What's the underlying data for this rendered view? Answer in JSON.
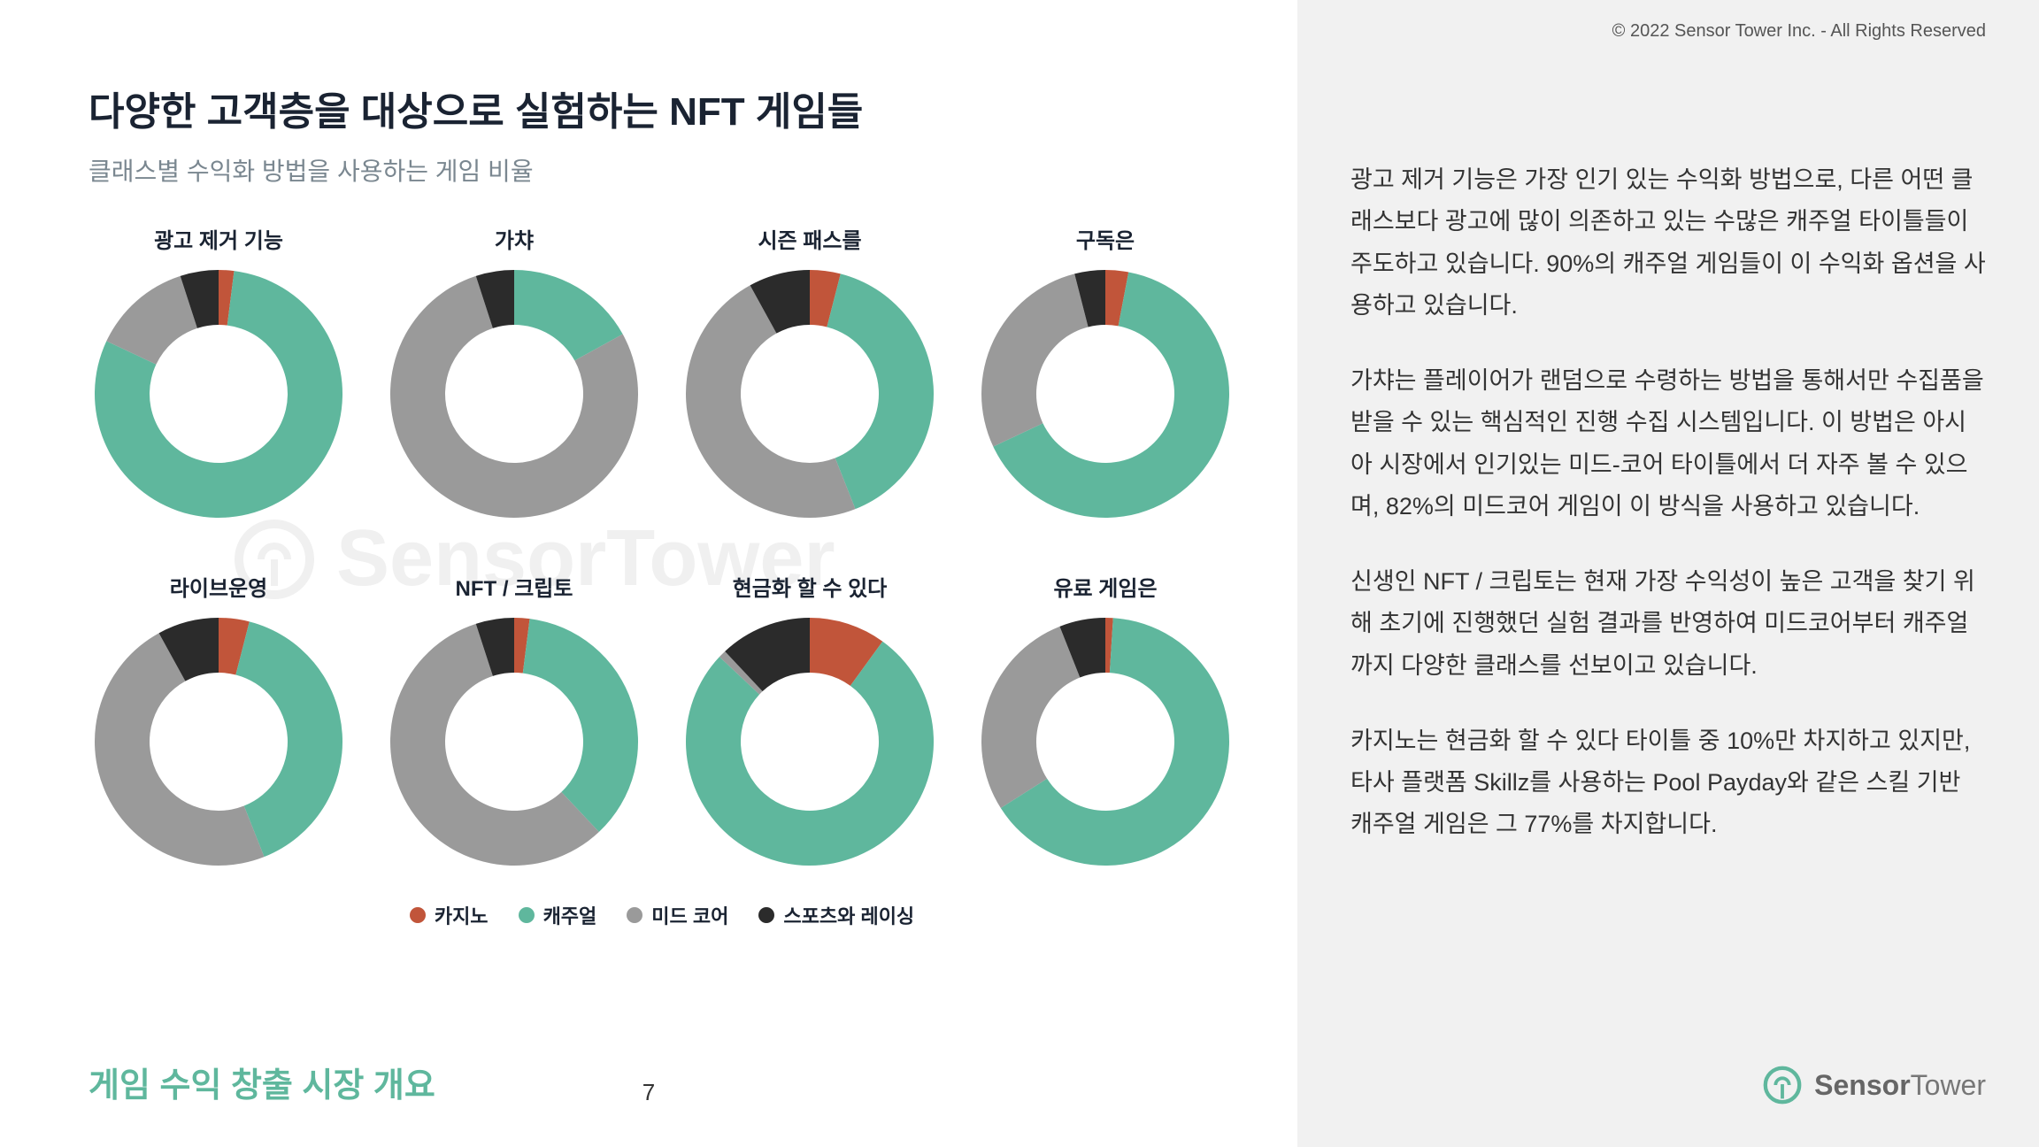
{
  "copyright": "© 2022 Sensor Tower Inc. - All Rights Reserved",
  "title": "다양한 고객층을 대상으로 실험하는 NFT 게임들",
  "subtitle": "클래스별 수익화 방법을 사용하는 게임 비율",
  "footer_title": "게임 수익 창출 시장 개요",
  "page_number": "7",
  "logo_text_bold": "Sensor",
  "logo_text_light": "Tower",
  "colors": {
    "casino": "#c1553a",
    "casual": "#5fb79d",
    "midcore": "#9a9a9a",
    "sports": "#2b2b2b",
    "background": "#ffffff",
    "side_bg": "#f1f1f1",
    "title_color": "#1a2332",
    "subtitle_color": "#7a8790",
    "accent": "#5fb79d"
  },
  "donut": {
    "outer_radius": 140,
    "inner_radius": 78,
    "size": 280
  },
  "legend": [
    {
      "label": "카지노",
      "color": "#c1553a"
    },
    {
      "label": "캐주얼",
      "color": "#5fb79d"
    },
    {
      "label": "미드 코어",
      "color": "#9a9a9a"
    },
    {
      "label": "스포츠와 레이싱",
      "color": "#2b2b2b"
    }
  ],
  "charts": [
    {
      "label": "광고 제거 기능",
      "values": {
        "casino": 2,
        "casual": 80,
        "midcore": 13,
        "sports": 5
      }
    },
    {
      "label": "가챠",
      "values": {
        "casino": 0,
        "casual": 17,
        "midcore": 78,
        "sports": 5
      }
    },
    {
      "label": "시즌 패스를",
      "values": {
        "casino": 4,
        "casual": 40,
        "midcore": 48,
        "sports": 8
      }
    },
    {
      "label": "구독은",
      "values": {
        "casino": 3,
        "casual": 65,
        "midcore": 28,
        "sports": 4
      }
    },
    {
      "label": "라이브운영",
      "values": {
        "casino": 4,
        "casual": 40,
        "midcore": 48,
        "sports": 8
      }
    },
    {
      "label": "NFT / 크립토",
      "values": {
        "casino": 2,
        "casual": 36,
        "midcore": 57,
        "sports": 5
      }
    },
    {
      "label": "현금화 할 수 있다",
      "values": {
        "casino": 10,
        "casual": 77,
        "midcore": 1,
        "sports": 12
      }
    },
    {
      "label": "유료 게임은",
      "values": {
        "casino": 1,
        "casual": 65,
        "midcore": 28,
        "sports": 6
      }
    }
  ],
  "side_paragraphs": [
    "광고 제거 기능은 가장 인기 있는 수익화 방법으로, 다른 어떤 클래스보다 광고에 많이 의존하고 있는 수많은 캐주얼 타이틀들이 주도하고 있습니다. 90%의 캐주얼 게임들이 이 수익화 옵션을 사용하고 있습니다.",
    "가챠는 플레이어가 랜덤으로 수령하는 방법을 통해서만 수집품을 받을 수 있는 핵심적인 진행 수집 시스템입니다. 이 방법은 아시아 시장에서 인기있는 미드-코어 타이틀에서 더 자주 볼 수 있으며, 82%의 미드코어 게임이 이 방식을 사용하고 있습니다.",
    "신생인 NFT / 크립토는 현재 가장 수익성이 높은 고객을 찾기 위해 초기에 진행했던 실험 결과를 반영하여 미드코어부터 캐주얼까지 다양한 클래스를 선보이고 있습니다.",
    "카지노는 현금화 할 수 있다 타이틀 중 10%만 차지하고 있지만, 타사 플랫폼 Skillz를 사용하는 Pool Payday와 같은 스킬 기반 캐주얼 게임은 그 77%를 차지합니다."
  ]
}
